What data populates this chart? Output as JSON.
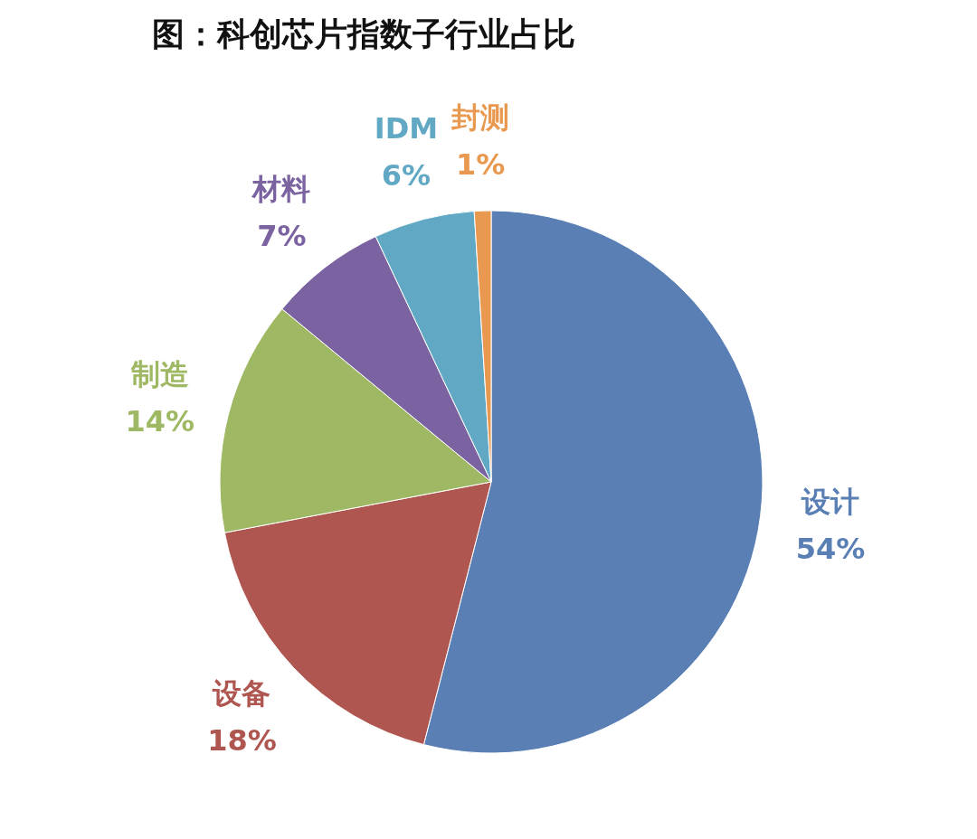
{
  "chart_data": {
    "type": "pie",
    "title": "图：科创芯片指数子行业占比",
    "categories": [
      "设计",
      "设备",
      "制造",
      "材料",
      "IDM",
      "封测"
    ],
    "values": [
      54,
      18,
      14,
      7,
      6,
      1
    ],
    "colors": [
      "#5a7fb5",
      "#b05650",
      "#9fb863",
      "#7b62a0",
      "#60a8c4",
      "#e9994f"
    ],
    "value_labels": [
      "54%",
      "18%",
      "14%",
      "7%",
      "6%",
      "1%"
    ]
  }
}
